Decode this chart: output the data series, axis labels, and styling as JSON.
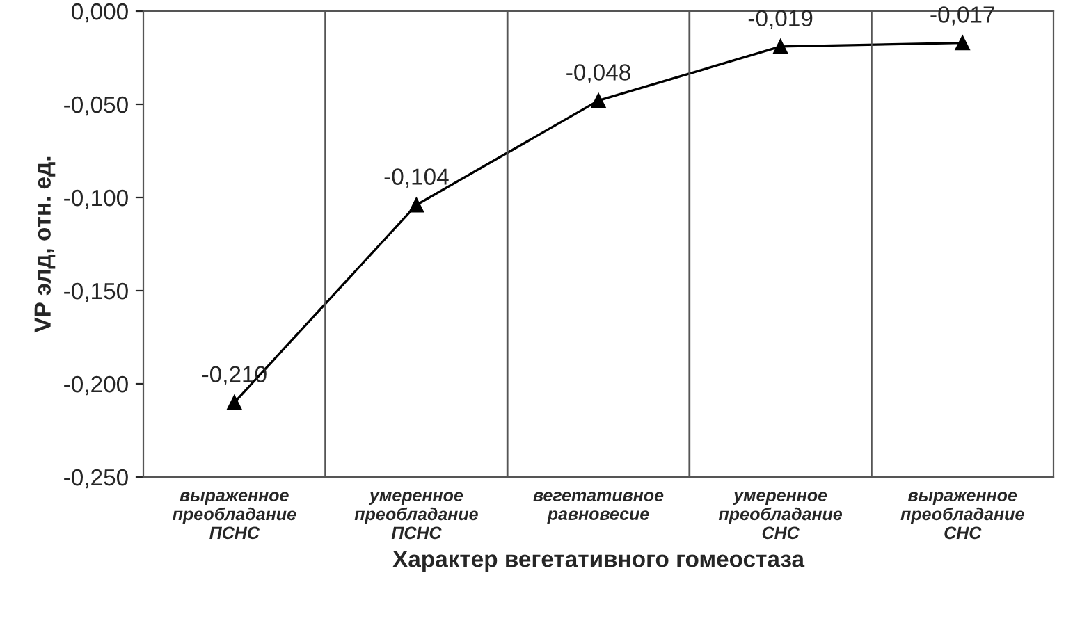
{
  "chart_data": {
    "type": "line",
    "xlabel": "Характер вегетативного гомеостаза",
    "ylabel": "VP элд, отн. ед.",
    "categories": [
      "выраженное\nпреобладание\nПСНС",
      "умеренное\nпреобладание\nПСНС",
      "вегетативное\nравновесие",
      "умеренное\nпреобладание\nСНС",
      "выраженное\nпреобладание\nСНС"
    ],
    "series": [
      {
        "color": "#000000",
        "values": [
          -0.21,
          -0.104,
          -0.048,
          -0.019,
          -0.017
        ],
        "value_labels": [
          "-0,210",
          "-0,104",
          "-0,048",
          "-0,019",
          "-0,017"
        ]
      }
    ],
    "ylim": [
      -0.25,
      0.0
    ],
    "yticks": [
      {
        "value": -0.25,
        "label": "-0,250"
      },
      {
        "value": -0.2,
        "label": "-0,200"
      },
      {
        "value": -0.15,
        "label": "-0,150"
      },
      {
        "value": -0.1,
        "label": "-0,100"
      },
      {
        "value": -0.05,
        "label": "-0,050"
      },
      {
        "value": 0.0,
        "label": "0,000"
      }
    ],
    "grid": "x",
    "marker": "triangle",
    "line_style": "solid",
    "legend": false
  }
}
